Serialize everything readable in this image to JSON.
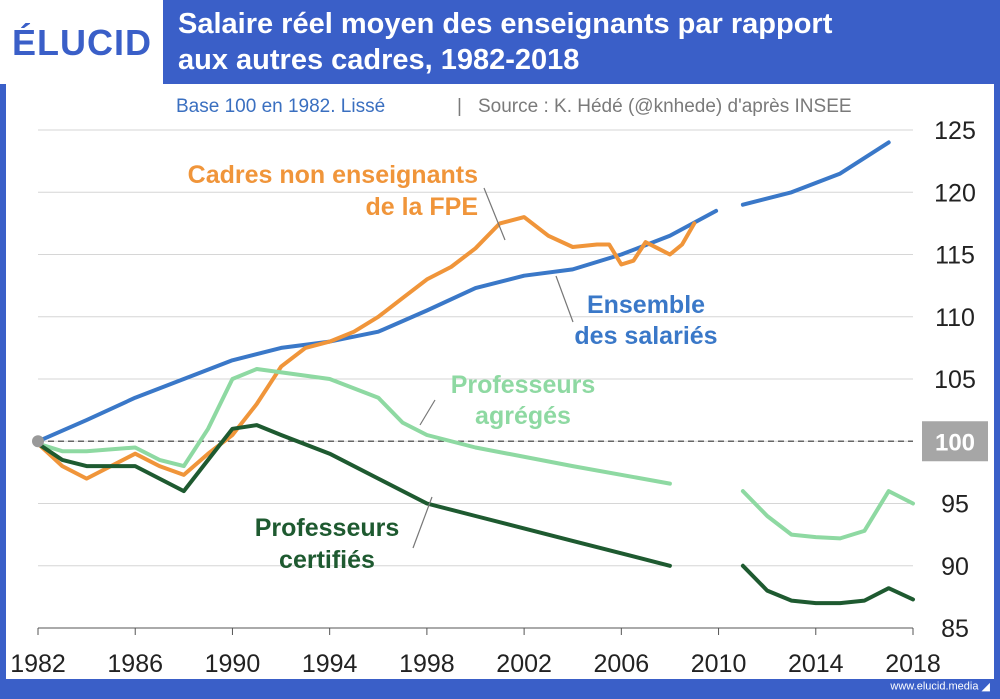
{
  "brand": {
    "logo": "ÉLUCID",
    "website": "www.elucid.media"
  },
  "colors": {
    "header_bg": "#3a5fc8",
    "ensemble": "#3a78c8",
    "cadres": "#f0953a",
    "agreges": "#8ed9a2",
    "certifies": "#1e5a30",
    "baseline": "#666666",
    "highlight_box": "#a6a6a6"
  },
  "chart_data": {
    "type": "line",
    "title": "Salaire réel moyen des enseignants par rapport aux autres cadres, 1982-2018",
    "title_line1": "Salaire réel moyen des enseignants par rapport",
    "title_line2": "aux autres cadres, 1982-2018",
    "subtitle_left": "Base 100 en 1982. Lissé",
    "subtitle_sep": "|",
    "subtitle_right": "Source : K. Hédé (@knhede) d'après INSEE",
    "xlim": [
      1982,
      2018
    ],
    "ylim": [
      85,
      125
    ],
    "x_ticks": [
      "1982",
      "1986",
      "1990",
      "1994",
      "1998",
      "2002",
      "2006",
      "2010",
      "2014",
      "2018"
    ],
    "y_ticks": [
      "125",
      "120",
      "115",
      "110",
      "105",
      "100",
      "95",
      "90",
      "85"
    ],
    "baseline": 100,
    "highlight_tick": "100",
    "grid": true,
    "series": [
      {
        "name": "Ensemble des salariés",
        "label_lines": [
          "Ensemble",
          "des salariés"
        ],
        "color_key": "ensemble",
        "segments": [
          [
            [
              1982,
              100
            ],
            [
              1984,
              101.7
            ],
            [
              1986,
              103.5
            ],
            [
              1988,
              105
            ],
            [
              1990,
              106.5
            ],
            [
              1992,
              107.5
            ],
            [
              1994,
              108
            ],
            [
              1996,
              108.8
            ],
            [
              1998,
              110.5
            ],
            [
              2000,
              112.3
            ],
            [
              2002,
              113.3
            ],
            [
              2004,
              113.8
            ],
            [
              2006,
              115
            ],
            [
              2008,
              116.5
            ],
            [
              2009.9,
              118.5
            ]
          ],
          [
            [
              2011,
              119
            ],
            [
              2013,
              120
            ],
            [
              2015,
              121.5
            ],
            [
              2017,
              124
            ]
          ]
        ]
      },
      {
        "name": "Cadres non enseignants de la FPE",
        "label_lines": [
          "Cadres non enseignants",
          "de la FPE"
        ],
        "color_key": "cadres",
        "segments": [
          [
            [
              1982,
              99.8
            ],
            [
              1983,
              98
            ],
            [
              1984,
              97
            ],
            [
              1985,
              98
            ],
            [
              1986,
              99
            ],
            [
              1987,
              98
            ],
            [
              1988,
              97.3
            ],
            [
              1989,
              99
            ],
            [
              1990,
              100.5
            ],
            [
              1991,
              103
            ],
            [
              1992,
              106
            ],
            [
              1993,
              107.5
            ],
            [
              1994,
              108
            ],
            [
              1995,
              108.8
            ],
            [
              1996,
              110
            ],
            [
              1997,
              111.5
            ],
            [
              1998,
              113
            ],
            [
              1999,
              114
            ],
            [
              2000,
              115.5
            ],
            [
              2001,
              117.5
            ],
            [
              2002,
              118
            ],
            [
              2003,
              116.5
            ],
            [
              2004,
              115.6
            ],
            [
              2005,
              115.8
            ],
            [
              2005.5,
              115.8
            ],
            [
              2006,
              114.2
            ],
            [
              2006.5,
              114.5
            ],
            [
              2007,
              116
            ],
            [
              2007.5,
              115.5
            ],
            [
              2008,
              115
            ],
            [
              2008.5,
              115.8
            ],
            [
              2009,
              117.5
            ]
          ]
        ]
      },
      {
        "name": "Professeurs agrégés",
        "label_lines": [
          "Professeurs",
          "agrégés"
        ],
        "color_key": "agreges",
        "segments": [
          [
            [
              1982,
              99.8
            ],
            [
              1983,
              99.2
            ],
            [
              1984,
              99.2
            ],
            [
              1986,
              99.5
            ],
            [
              1987,
              98.5
            ],
            [
              1988,
              98
            ],
            [
              1989,
              101
            ],
            [
              1990,
              105
            ],
            [
              1991,
              105.8
            ],
            [
              1994,
              105
            ],
            [
              1996,
              103.5
            ],
            [
              1997,
              101.5
            ],
            [
              1998,
              100.5
            ],
            [
              2000,
              99.5
            ],
            [
              2004,
              98
            ],
            [
              2008,
              96.6
            ]
          ],
          [
            [
              2011,
              96
            ],
            [
              2012,
              94
            ],
            [
              2013,
              92.5
            ],
            [
              2014,
              92.3
            ],
            [
              2015,
              92.2
            ],
            [
              2016,
              92.8
            ],
            [
              2017,
              96
            ],
            [
              2018,
              95
            ]
          ]
        ]
      },
      {
        "name": "Professeurs certifiés",
        "label_lines": [
          "Professeurs",
          "certifiés"
        ],
        "color_key": "certifies",
        "segments": [
          [
            [
              1982,
              99.8
            ],
            [
              1983,
              98.5
            ],
            [
              1984,
              98
            ],
            [
              1986,
              98
            ],
            [
              1987,
              97
            ],
            [
              1988,
              96
            ],
            [
              1989,
              98.5
            ],
            [
              1990,
              101
            ],
            [
              1991,
              101.3
            ],
            [
              1992,
              100.5
            ],
            [
              1994,
              99
            ],
            [
              1996,
              97
            ],
            [
              1998,
              95
            ],
            [
              2000,
              94
            ],
            [
              2004,
              92
            ],
            [
              2008,
              90
            ]
          ],
          [
            [
              2011,
              90
            ],
            [
              2012,
              88
            ],
            [
              2013,
              87.2
            ],
            [
              2014,
              87
            ],
            [
              2015,
              87
            ],
            [
              2016,
              87.2
            ],
            [
              2017,
              88.2
            ],
            [
              2018,
              87.3
            ]
          ]
        ]
      }
    ]
  }
}
